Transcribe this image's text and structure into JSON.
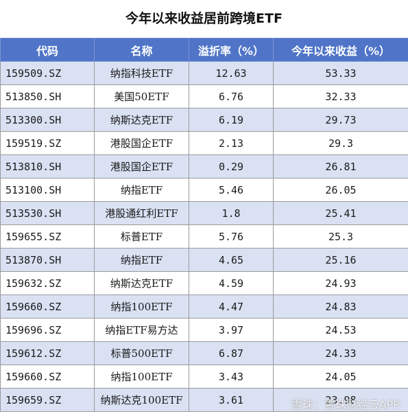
{
  "title": "今年以来收益居前跨境ETF",
  "headers": [
    "代码",
    "名称",
    "溢折率（%）",
    "今年以来收益（%）"
  ],
  "rows": [
    {
      "code": "159509.SZ",
      "name": "纳指科技ETF",
      "premium": "12.63",
      "ytd": "53.33"
    },
    {
      "code": "513850.SH",
      "name": "美国50ETF",
      "premium": "6.76",
      "ytd": "32.33"
    },
    {
      "code": "513300.SH",
      "name": "纳斯达克ETF",
      "premium": "6.19",
      "ytd": "29.73"
    },
    {
      "code": "159519.SZ",
      "name": "港股国企ETF",
      "premium": "2.13",
      "ytd": "29.3"
    },
    {
      "code": "513810.SH",
      "name": "港股国企ETF",
      "premium": "0.29",
      "ytd": "26.81"
    },
    {
      "code": "513100.SH",
      "name": "纳指ETF",
      "premium": "5.46",
      "ytd": "26.05"
    },
    {
      "code": "513530.SH",
      "name": "港股通红利ETF",
      "premium": "1.8",
      "ytd": "25.41"
    },
    {
      "code": "159655.SZ",
      "name": "标普ETF",
      "premium": "5.76",
      "ytd": "25.3"
    },
    {
      "code": "513870.SH",
      "name": "纳指ETF",
      "premium": "4.65",
      "ytd": "25.16"
    },
    {
      "code": "159632.SZ",
      "name": "纳斯达克ETF",
      "premium": "4.59",
      "ytd": "24.93"
    },
    {
      "code": "159660.SZ",
      "name": "纳指100ETF",
      "premium": "4.47",
      "ytd": "24.83"
    },
    {
      "code": "159696.SZ",
      "name": "纳指ETF易方达",
      "premium": "3.97",
      "ytd": "24.53"
    },
    {
      "code": "159612.SZ",
      "name": "标普500ETF",
      "premium": "6.87",
      "ytd": "24.33"
    },
    {
      "code": "159660.SZ",
      "name": "纳指100ETF",
      "premium": "3.43",
      "ytd": "24.05"
    },
    {
      "code": "159659.SZ",
      "name": "纳斯达克100ETF",
      "premium": "3.61",
      "ytd": "23.98"
    }
  ],
  "watermark": "雪球：雪球财经云APP",
  "colors": {
    "header_bg": "#4f74c8",
    "alt_row_bg": "#d9e1f3"
  }
}
